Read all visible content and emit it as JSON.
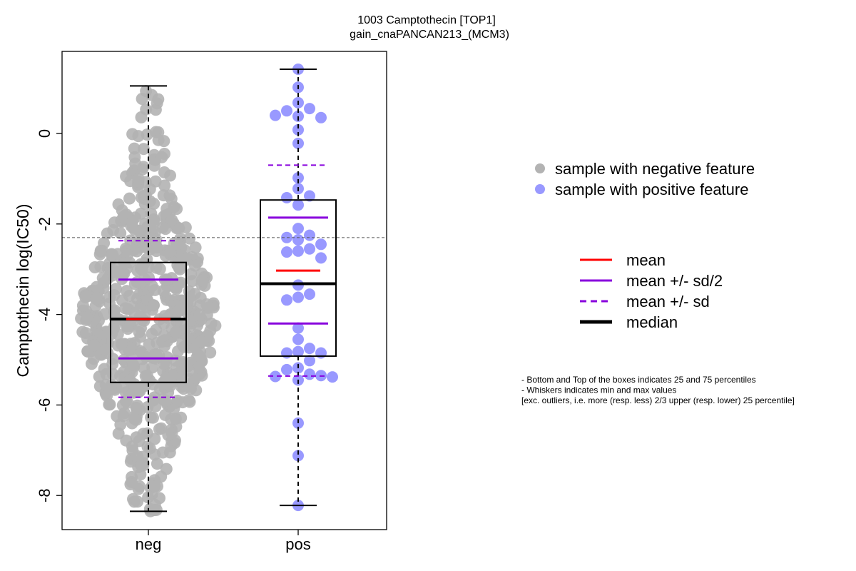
{
  "chart_data": {
    "type": "box",
    "title": "1003 Camptothecin [TOP1]",
    "subtitle": "gain_cnaPANCAN213_(MCM3)",
    "ylabel": "Camptothecin log(IC50)",
    "xlabel": "",
    "ylim": [
      -8.7,
      1.8
    ],
    "yticks": [
      {
        "value": 0,
        "label": "0"
      },
      {
        "value": -2,
        "label": "-2"
      },
      {
        "value": -4,
        "label": "-4"
      },
      {
        "value": -6,
        "label": "-6"
      },
      {
        "value": -8,
        "label": "-8"
      }
    ],
    "reference_line": -2.3,
    "categories": [
      "neg",
      "pos"
    ],
    "groups": [
      {
        "name": "neg",
        "point_color": "#b3b3b3",
        "whisker_min": -8.35,
        "whisker_max": 1.05,
        "q1": -5.5,
        "median": -4.1,
        "q3": -2.85,
        "mean": -4.1,
        "mean_minus_half_sd": -4.97,
        "mean_plus_half_sd": -3.23,
        "mean_minus_sd": -5.83,
        "mean_plus_sd": -2.37,
        "point_count": 620,
        "points_sample": [
          1.1,
          1.05,
          0.8,
          0.7,
          0.5,
          0.4,
          0.3,
          0.0,
          -0.1,
          -0.2,
          -0.4,
          -0.5,
          -0.6,
          -0.8,
          -1.0,
          -1.3,
          -1.5,
          -1.8,
          -2.0,
          -2.3,
          -2.6,
          -3.0,
          -3.5,
          -4.0,
          -4.5,
          -5.0,
          -5.5,
          -6.0,
          -6.5,
          -7.0,
          -7.4,
          -7.7,
          -8.0,
          -8.35
        ]
      },
      {
        "name": "pos",
        "point_color": "#9999ff",
        "whisker_min": -8.22,
        "whisker_max": 1.42,
        "q1": -4.92,
        "median": -3.32,
        "q3": -1.47,
        "mean": -3.03,
        "mean_minus_half_sd": -4.2,
        "mean_plus_half_sd": -1.86,
        "mean_minus_sd": -5.36,
        "mean_plus_sd": -0.7,
        "points": [
          1.42,
          1.02,
          0.68,
          0.55,
          0.5,
          0.38,
          0.35,
          0.4,
          0.08,
          -0.22,
          -0.98,
          -1.22,
          -1.38,
          -1.42,
          -1.58,
          -2.1,
          -2.25,
          -2.3,
          -2.35,
          -2.45,
          -2.55,
          -2.6,
          -2.62,
          -2.75,
          -3.35,
          -3.55,
          -3.62,
          -3.68,
          -4.3,
          -4.55,
          -4.75,
          -4.82,
          -4.85,
          -4.85,
          -5.02,
          -5.18,
          -5.22,
          -5.32,
          -5.35,
          -5.37,
          -5.38,
          -5.45,
          -6.4,
          -7.12,
          -8.22
        ]
      }
    ],
    "legend_points": [
      {
        "label": "sample with negative feature",
        "color": "#b3b3b3"
      },
      {
        "label": "sample with positive feature",
        "color": "#9999ff"
      }
    ],
    "legend_lines": [
      {
        "label": "mean",
        "color": "#ff0000",
        "style": "solid"
      },
      {
        "label": "mean +/- sd/2",
        "color": "#8800dd",
        "style": "solid"
      },
      {
        "label": "mean +/- sd",
        "color": "#8800dd",
        "style": "dashed"
      },
      {
        "label": "median",
        "color": "#000000",
        "style": "solid-thick"
      }
    ],
    "notes": [
      "- Bottom and Top of the boxes indicates 25 and 75 percentiles",
      "- Whiskers indicates min and max values",
      "[exc. outliers, i.e. more (resp. less) 2/3 upper (resp. lower) 25 percentile]"
    ],
    "grid": false
  }
}
